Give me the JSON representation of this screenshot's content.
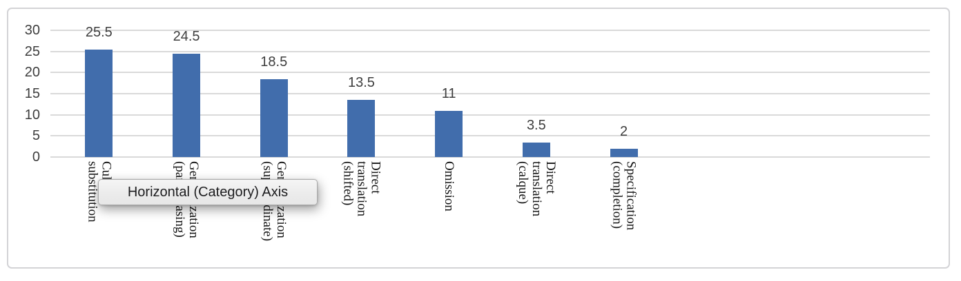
{
  "chart_data": {
    "type": "bar",
    "title": "",
    "xlabel": "",
    "ylabel": "",
    "categories": [
      "Cultural substitution",
      "Generalization (paraphrasing)",
      "Generalization (superordinate)",
      "Direct translation (shifted)",
      "Omission",
      "Direct translation (calque)",
      "Specification (completion)"
    ],
    "category_label_lines": [
      [
        "Cultural",
        "substitution"
      ],
      [
        "Generalization",
        "(paraphrasing)"
      ],
      [
        "Generalization",
        "(superordinate)"
      ],
      [
        "Direct",
        "translation",
        "(shifted)"
      ],
      [
        "Omission"
      ],
      [
        "Direct",
        "translation",
        "(calque)"
      ],
      [
        "Specification",
        "(completion)"
      ]
    ],
    "values": [
      25.5,
      24.5,
      18.5,
      13.5,
      11,
      3.5,
      2
    ],
    "data_labels": [
      "25.5",
      "24.5",
      "18.5",
      "13.5",
      "11",
      "3.5",
      "2"
    ],
    "yticks": [
      0,
      5,
      10,
      15,
      20,
      25,
      30
    ],
    "ytick_labels": [
      "0",
      "5",
      "10",
      "15",
      "20",
      "25",
      "30"
    ],
    "ylim": [
      0,
      30
    ],
    "grid": true,
    "legend": false,
    "category_labels_rotated_degrees": 90,
    "total_category_slots": 10,
    "colors": {
      "bar": "#416dac",
      "gridline": "#d9d9d9",
      "frame_border": "#d3d3d6",
      "axis_text": "#3d3d3d",
      "data_label_text": "#3d3d3d",
      "category_text": "#151515",
      "background": "#ffffff"
    }
  },
  "tooltip": {
    "text": "Horizontal (Category) Axis",
    "background": "#ececec",
    "border": "#a9a9a9",
    "text_color": "#1c1c1e"
  }
}
